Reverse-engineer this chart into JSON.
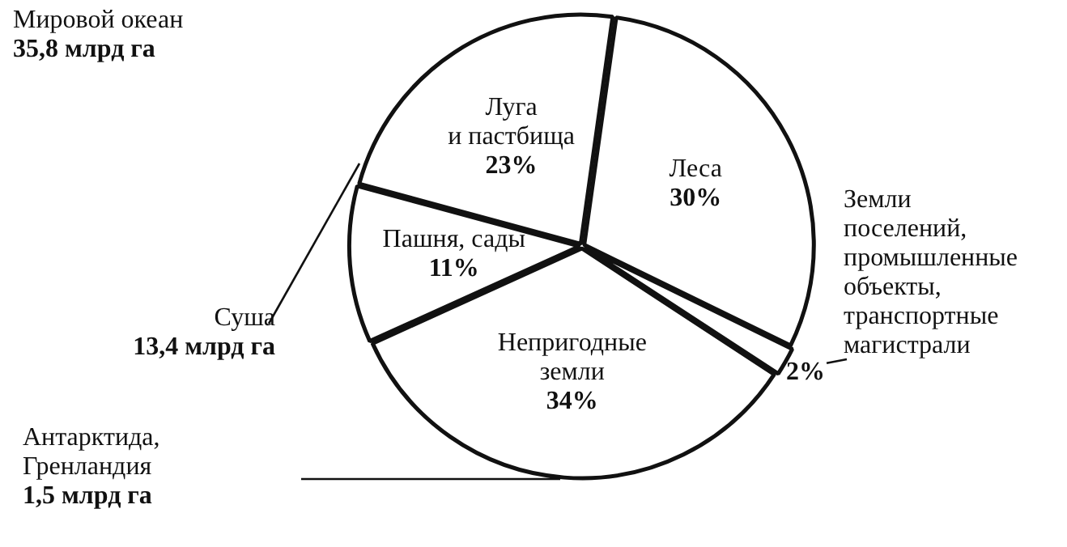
{
  "chart_data": {
    "type": "pie",
    "categories": [
      "Леса",
      "Земли\nпоселений,\nпромышленные\nобъекты,\nтранспортные\nмагистрали",
      "Непригодные\nземли",
      "Пашня, сады",
      "Луга\nи пастбища"
    ],
    "values": [
      30,
      2,
      34,
      11,
      23
    ],
    "value_labels": [
      "30%",
      "2%",
      "34%",
      "11%",
      "23%"
    ],
    "colors": [
      "#ffffff",
      "#ffffff",
      "#ffffff",
      "#ffffff",
      "#ffffff"
    ],
    "legend": false,
    "annotations": [
      "Мировой океан\n35,8 млрд га",
      "Суша\n13,4 млрд га",
      "Антарктида,\nГренландия\n1,5 млрд га"
    ]
  }
}
